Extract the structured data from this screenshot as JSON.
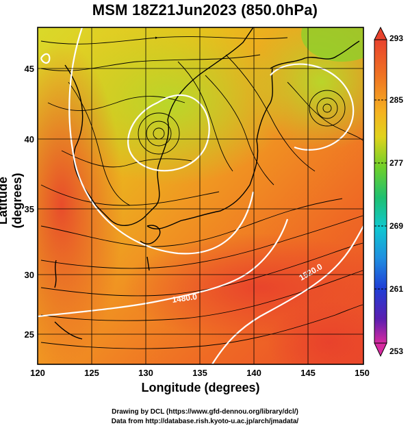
{
  "title": "MSM 18Z21Jun2023 (850.0hPa)",
  "axes": {
    "xlabel": "Longitude (degrees)",
    "ylabel": "Latitude  (degrees)",
    "x_ticks": [
      "120",
      "125",
      "130",
      "135",
      "140",
      "145",
      "150"
    ],
    "y_ticks": [
      "45",
      "40",
      "35",
      "30",
      "25"
    ],
    "xlim": [
      120,
      150
    ],
    "ylim": [
      22.5,
      47.5
    ]
  },
  "colorbar": {
    "labels": [
      "293",
      "285",
      "277",
      "269",
      "261",
      "253"
    ],
    "range": [
      253,
      293
    ],
    "stops": [
      "#d62aa0",
      "#6b1fb0",
      "#1f2bd6",
      "#1f8fe0",
      "#10d0c8",
      "#2fc13a",
      "#a8d62a",
      "#f2d01c",
      "#f5a321",
      "#f07422",
      "#e8432e"
    ]
  },
  "contours": {
    "labels": [
      "1480.0",
      "1520.0"
    ]
  },
  "credits": {
    "line1": "Drawing by DCL (https://www.gfd-dennou.org/library/dcl/)",
    "line2": "Data from http://database.rish.kyoto-u.ac.jp/arch/jmadata/"
  }
}
